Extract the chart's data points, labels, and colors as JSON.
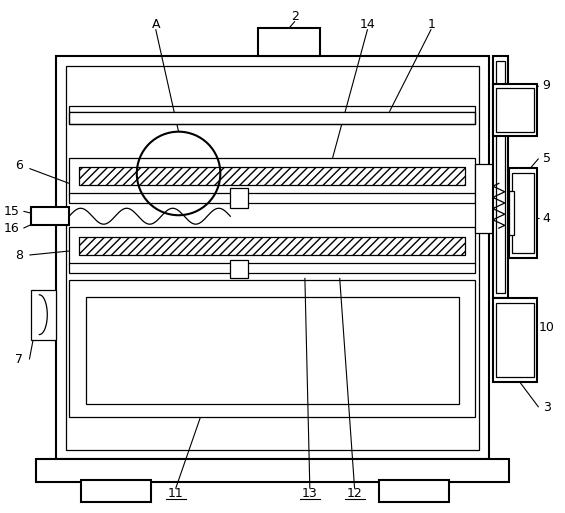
{
  "bg_color": "#ffffff",
  "line_color": "#000000",
  "figsize": [
    5.65,
    5.13
  ],
  "dpi": 100,
  "label_fontsize": 9
}
